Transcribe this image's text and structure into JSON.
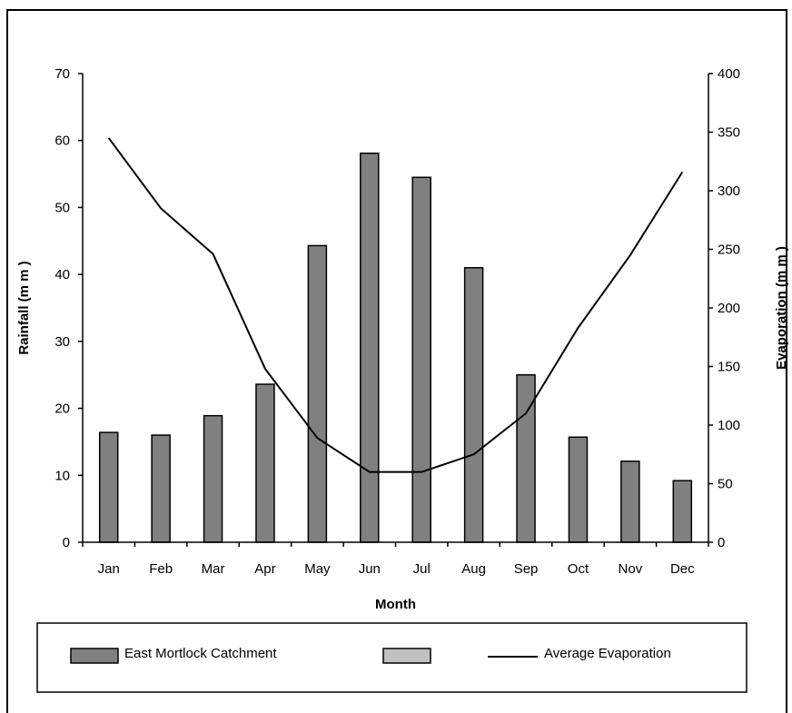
{
  "chart_data": {
    "type": "bar",
    "categories": [
      "Jan",
      "Feb",
      "Mar",
      "Apr",
      "May",
      "Jun",
      "Jul",
      "Aug",
      "Sep",
      "Oct",
      "Nov",
      "Dec"
    ],
    "series": [
      {
        "name": "East Mortlock Catchment",
        "kind": "bar",
        "axis": "left",
        "color": "#808080",
        "values": [
          16.4,
          16.0,
          18.9,
          23.6,
          44.3,
          58.1,
          54.5,
          41.0,
          25.0,
          15.7,
          12.1,
          9.2
        ]
      },
      {
        "name": "Average Evaporation",
        "kind": "line",
        "axis": "right",
        "color": "#000000",
        "values": [
          345,
          285,
          246,
          148,
          89,
          60,
          60,
          75,
          110,
          183,
          245,
          316
        ]
      }
    ],
    "xlabel": "Month",
    "ylabel": "Rainfall (m m )",
    "y2label": "Evaporation (m m )",
    "ylim": [
      0,
      70
    ],
    "y2lim": [
      0,
      400
    ],
    "yticks": [
      "0",
      "10",
      "20",
      "30",
      "40",
      "50",
      "60",
      "70"
    ],
    "y2ticks": [
      "0",
      "50",
      "100",
      "150",
      "200",
      "250",
      "300",
      "350",
      "400"
    ],
    "grid": false,
    "legend": {
      "placement": "bottom",
      "entries": [
        {
          "label": "East Mortlock Catchment",
          "swatch": "bar",
          "color": "#808080"
        },
        {
          "label": "",
          "swatch": "bar",
          "color": "#c0c0c0"
        },
        {
          "label": "Average Evaporation",
          "swatch": "line",
          "color": "#000000"
        }
      ]
    }
  }
}
